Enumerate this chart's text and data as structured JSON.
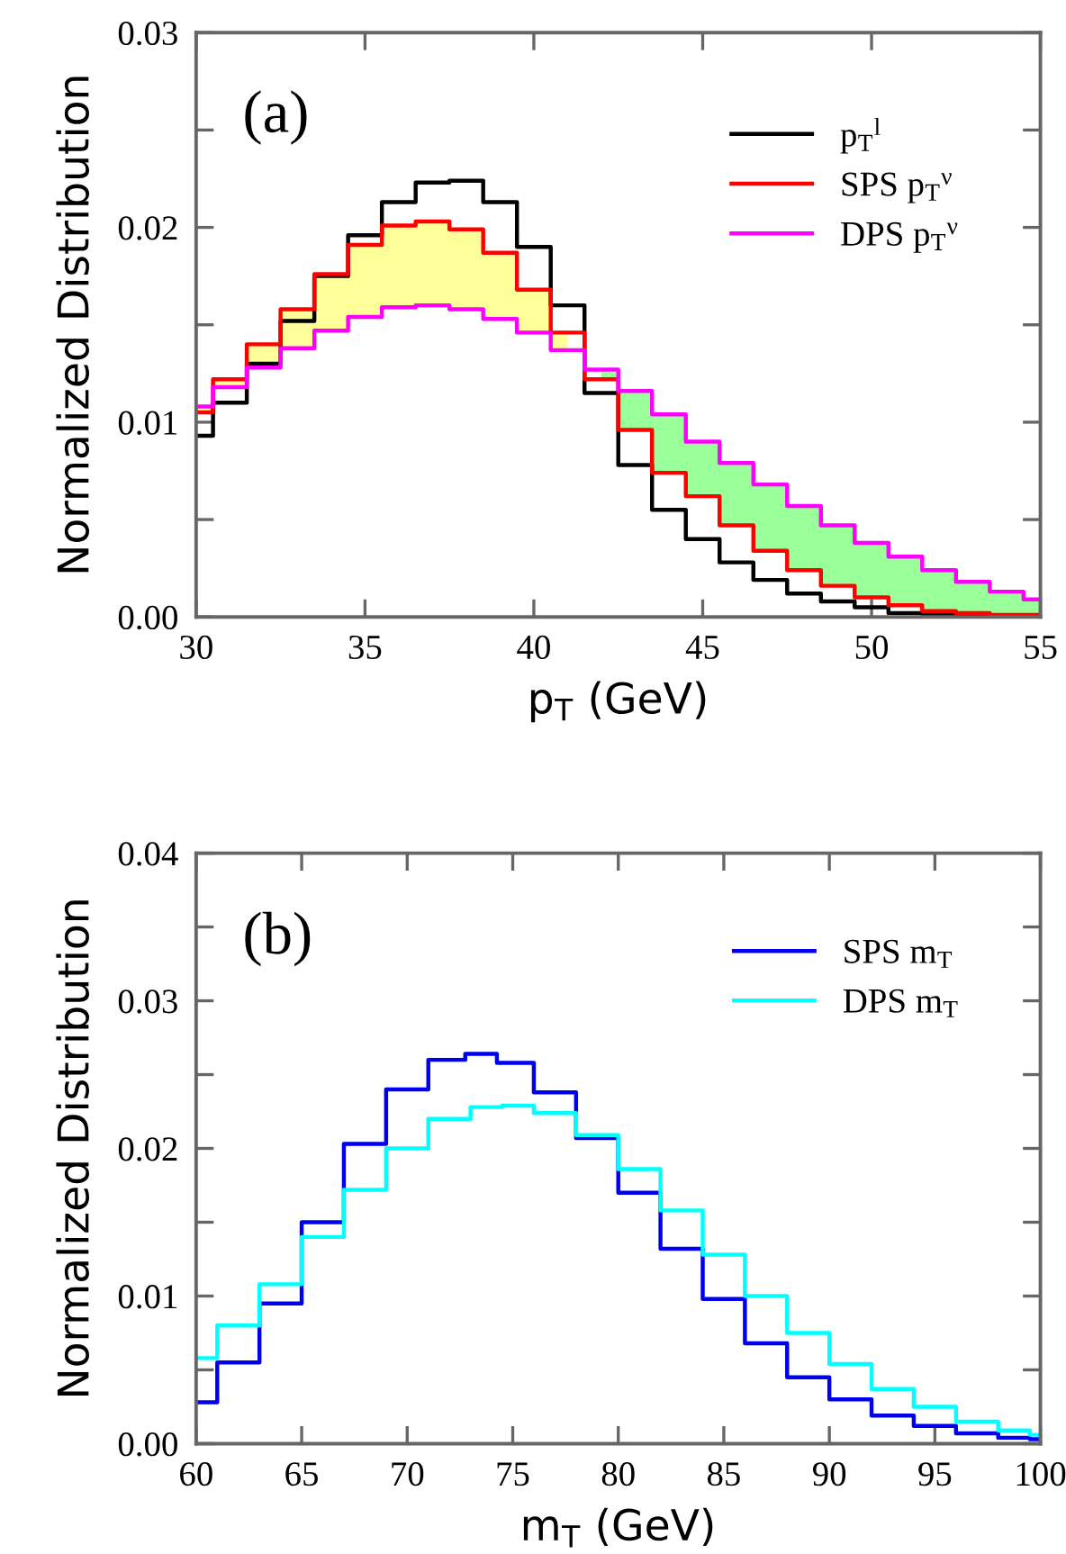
{
  "chart_data": [
    {
      "type": "step",
      "ylabel": "Normalized Distribution",
      "xlabel": "p$_{T}$ (GeV)",
      "annotations": [
        "(a)"
      ],
      "legend": "top right",
      "grid": false,
      "xlim": [
        30,
        55
      ],
      "xticks": [
        30,
        35,
        40,
        45,
        50,
        55
      ],
      "ylim": [
        0,
        0.03
      ],
      "yticks": [
        {
          "value": 0,
          "label": "0.00"
        },
        {
          "value": 0.005,
          "label": null
        },
        {
          "value": 0.01,
          "label": "0.01"
        },
        {
          "value": 0.015,
          "label": null
        },
        {
          "value": 0.02,
          "label": "0.02"
        },
        {
          "value": 0.025,
          "label": null
        },
        {
          "value": 0.03,
          "label": "0.03"
        }
      ],
      "x": [
        30,
        31,
        32,
        33,
        34,
        35,
        36,
        37,
        38,
        39,
        40,
        41,
        42,
        43,
        44,
        45,
        46,
        47,
        48,
        49,
        50,
        51,
        52,
        53,
        54,
        55
      ],
      "series": [
        {
          "name": "p$_{T}$$^{l}$",
          "color": "#000000",
          "values": [
            0.0093,
            0.011,
            0.013,
            0.0152,
            0.0175,
            0.0196,
            0.0213,
            0.0223,
            0.0224,
            0.0213,
            0.019,
            0.016,
            0.0115,
            0.0078,
            0.0055,
            0.004,
            0.0028,
            0.0019,
            0.0012,
            0.0008,
            0.0005,
            0.0002,
            0.0001,
            0.0001,
            0.0,
            0.0
          ]
        },
        {
          "name": "SPS p$_{T}$$^{ν}$",
          "color": "#ff0000",
          "values": [
            0.0105,
            0.0122,
            0.014,
            0.0158,
            0.0176,
            0.0191,
            0.0201,
            0.0203,
            0.0199,
            0.0187,
            0.0168,
            0.0146,
            0.0122,
            0.0096,
            0.0074,
            0.0062,
            0.0047,
            0.0034,
            0.0024,
            0.0016,
            0.001,
            0.0006,
            0.0003,
            0.0002,
            0.0001,
            0.0001
          ],
          "lower": [
            0.0105,
            0.0118,
            0.0128,
            0.0138,
            0.0147,
            0.0154,
            0.0159,
            0.016,
            0.0158,
            0.0153,
            0.0146,
            0.0137,
            null,
            null,
            null,
            null,
            null,
            null,
            null,
            null,
            null,
            null,
            null,
            null,
            null,
            null
          ],
          "upper": [
            0.0108,
            0.0122,
            0.014,
            0.0158,
            0.0176,
            0.0191,
            0.0201,
            0.0203,
            0.0199,
            0.0187,
            0.0168,
            0.0146,
            null,
            null,
            null,
            null,
            null,
            null,
            null,
            null,
            null,
            null,
            null,
            null,
            null,
            null
          ],
          "colors": [
            "#ffff99",
            "#ffff99",
            "#ffff99",
            "#ffff99",
            "#ffff99",
            "#ffff99",
            "#ffff99",
            "#ffff99",
            "#ffff99",
            "#ffff99",
            "#ffff99",
            "#ffff99",
            "#ffff99",
            "#ffff99",
            "#ffff99",
            "#ffff99",
            "#ffff99",
            "#ffff99",
            "#ffff99",
            "#ffff99",
            "#ffff99",
            "#ffff99",
            "#ffff99",
            "#ffff99",
            "#ffff99",
            "#ffff99"
          ]
        },
        {
          "name": "DPS p$_{T}$$^{ν}$",
          "color": "#ff00ff",
          "values": [
            0.0108,
            0.0118,
            0.0128,
            0.0138,
            0.0147,
            0.0154,
            0.0159,
            0.016,
            0.0158,
            0.0153,
            0.0146,
            0.0137,
            0.0127,
            0.0116,
            0.0104,
            0.009,
            0.0079,
            0.0068,
            0.0057,
            0.0047,
            0.0038,
            0.0031,
            0.0024,
            0.0018,
            0.0013,
            0.0009
          ],
          "lower": [
            null,
            null,
            null,
            null,
            null,
            null,
            null,
            null,
            null,
            null,
            null,
            null,
            0.0122,
            0.0096,
            0.0074,
            0.0062,
            0.0047,
            0.0034,
            0.0024,
            0.0016,
            0.001,
            0.0006,
            0.0003,
            0.0002,
            0.0001,
            0.0001
          ],
          "upper": [
            null,
            null,
            null,
            null,
            null,
            null,
            null,
            null,
            null,
            null,
            null,
            null,
            0.0127,
            0.0116,
            0.0104,
            0.009,
            0.0079,
            0.0068,
            0.0057,
            0.0047,
            0.0038,
            0.0031,
            0.0024,
            0.0018,
            0.0013,
            0.0009
          ],
          "colors": [
            "#99ff99",
            "#99ff99",
            "#99ff99",
            "#99ff99",
            "#99ff99",
            "#99ff99",
            "#99ff99",
            "#99ff99",
            "#99ff99",
            "#99ff99",
            "#99ff99",
            "#99ff99",
            "#99ff99",
            "#99ff99",
            "#99ff99",
            "#99ff99",
            "#99ff99",
            "#99ff99",
            "#99ff99",
            "#99ff99",
            "#99ff99",
            "#99ff99",
            "#99ff99",
            "#99ff99",
            "#99ff99",
            "#99ff99"
          ]
        }
      ]
    },
    {
      "type": "step",
      "ylabel": "Normalized Distribution",
      "xlabel": "m$_{T}$ (GeV)",
      "annotations": [
        "(b)"
      ],
      "legend": "top right",
      "grid": false,
      "xlim": [
        60,
        100
      ],
      "xticks": [
        60,
        65,
        70,
        75,
        80,
        85,
        90,
        95,
        100
      ],
      "ylim": [
        0,
        0.04
      ],
      "yticks": [
        {
          "value": 0,
          "label": "0.00"
        },
        {
          "value": 0.005,
          "label": null
        },
        {
          "value": 0.01,
          "label": "0.01"
        },
        {
          "value": 0.015,
          "label": null
        },
        {
          "value": 0.02,
          "label": "0.02"
        },
        {
          "value": 0.025,
          "label": null
        },
        {
          "value": 0.03,
          "label": "0.03"
        },
        {
          "value": 0.035,
          "label": null
        },
        {
          "value": 0.04,
          "label": "0.04"
        }
      ],
      "series": [
        {
          "name": "SPS m$_{T}$",
          "color": "#0000ee",
          "x": [
            60,
            62,
            64,
            66,
            68,
            70,
            72,
            73.5,
            75,
            77,
            79,
            81,
            83,
            85,
            87,
            89,
            91,
            93,
            95,
            97,
            99,
            100
          ],
          "values": [
            0.0028,
            0.0055,
            0.0095,
            0.015,
            0.0203,
            0.024,
            0.026,
            0.0264,
            0.0258,
            0.0238,
            0.0207,
            0.017,
            0.0132,
            0.0098,
            0.0068,
            0.0045,
            0.003,
            0.0019,
            0.0012,
            0.0007,
            0.0004,
            0.0003
          ]
        },
        {
          "name": "DPS m$_{T}$",
          "color": "#00ffff",
          "x": [
            60,
            62,
            64,
            66,
            68,
            70,
            72,
            74,
            75,
            77,
            79,
            81,
            83,
            85,
            87,
            89,
            91,
            93,
            95,
            97,
            99,
            100
          ],
          "values": [
            0.0058,
            0.008,
            0.0108,
            0.014,
            0.0172,
            0.02,
            0.022,
            0.0228,
            0.0229,
            0.0224,
            0.0209,
            0.0186,
            0.0158,
            0.0128,
            0.01,
            0.0075,
            0.0054,
            0.0037,
            0.0025,
            0.0015,
            0.0009,
            0.0006
          ]
        }
      ]
    }
  ]
}
